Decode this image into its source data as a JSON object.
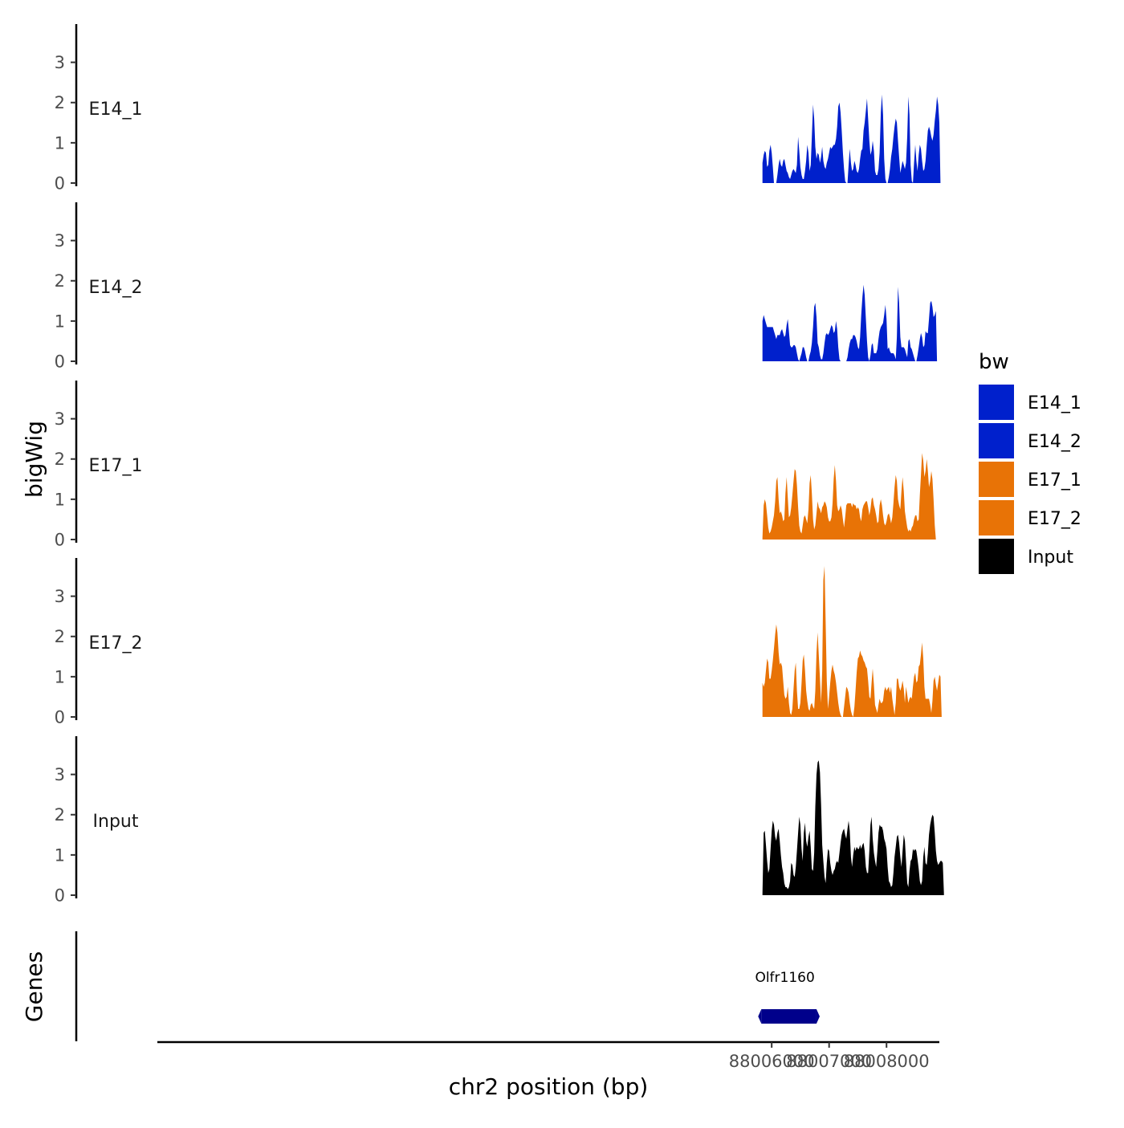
{
  "chart_data": {
    "type": "area",
    "xlabel": "chr2 position (bp)",
    "ylabel": "bigWig",
    "genes_label": "Genes",
    "xlim": [
      87995300,
      88008920
    ],
    "x_ticks": [
      {
        "value": 88006000,
        "label": "88006000"
      },
      {
        "value": 88007000,
        "label": "88007000"
      },
      {
        "value": 88008000,
        "label": "88008000"
      }
    ],
    "ylim": [
      0,
      3.95
    ],
    "y_ticks": [
      {
        "value": 0,
        "label": "0"
      },
      {
        "value": 1,
        "label": "1"
      },
      {
        "value": 2,
        "label": "2"
      },
      {
        "value": 3,
        "label": "3"
      }
    ],
    "x_start": 88005840,
    "x_step": 20,
    "legend": {
      "title": "bw",
      "entries": [
        {
          "name": "E14_1",
          "color": "#0020CC"
        },
        {
          "name": "E14_2",
          "color": "#0020CC"
        },
        {
          "name": "E17_1",
          "color": "#E87306"
        },
        {
          "name": "E17_2",
          "color": "#E87306"
        },
        {
          "name": "Input",
          "color": "#000000"
        }
      ]
    },
    "series": [
      {
        "name": "E14_1",
        "color": "#0020CC",
        "values": [
          0.5,
          0.7,
          0.8,
          0.75,
          0.4,
          0.45,
          0.8,
          0.95,
          0.75,
          0.4,
          0,
          0,
          0,
          0.2,
          0.45,
          0.6,
          0.45,
          0.4,
          0.55,
          0.6,
          0.45,
          0.3,
          0.25,
          0.15,
          0.1,
          0.2,
          0.3,
          0.35,
          0.3,
          0.25,
          0.45,
          1.15,
          0.8,
          0.4,
          0.2,
          0.1,
          0.1,
          0.3,
          0.55,
          0.95,
          0.75,
          0.3,
          0.45,
          1.15,
          1.95,
          1.6,
          0.9,
          0.6,
          0.75,
          0.7,
          0.5,
          0.65,
          0.9,
          0.55,
          0.4,
          0.35,
          0.5,
          0.6,
          0.75,
          0.9,
          0.85,
          0.9,
          0.95,
          0.95,
          1.1,
          1.4,
          1.9,
          2.0,
          1.75,
          1.3,
          0.75,
          0.35,
          0.05,
          0,
          0,
          0.45,
          0.85,
          0.5,
          0.3,
          0.35,
          0.55,
          0.45,
          0.3,
          0.25,
          0.35,
          0.6,
          0.8,
          0.85,
          1.3,
          1.5,
          1.8,
          2.1,
          1.6,
          1.05,
          0.7,
          0.8,
          1.05,
          0.8,
          0.3,
          0.2,
          0.2,
          0.35,
          0.75,
          1.75,
          2.2,
          1.7,
          0.6,
          0.1,
          0,
          0,
          0.15,
          0.35,
          0.65,
          0.85,
          1.15,
          1.4,
          1.6,
          1.5,
          1.05,
          0.65,
          0.25,
          0.4,
          0.55,
          0.45,
          0.35,
          0.5,
          1.15,
          2.15,
          1.7,
          0.45,
          0.05,
          0,
          0.5,
          0.95,
          0.55,
          0.3,
          0.7,
          0.95,
          0.85,
          0.55,
          0.3,
          0.35,
          0.55,
          0.95,
          1.3,
          1.4,
          1.3,
          1.15,
          1.05,
          1.2,
          1.55,
          1.8,
          2.15,
          1.95,
          1.5,
          0
        ]
      },
      {
        "name": "E14_2",
        "color": "#0020CC",
        "values": [
          1.0,
          1.15,
          1.05,
          0.95,
          0.85,
          0.85,
          0.85,
          0.85,
          0.85,
          0.85,
          0.75,
          0.65,
          0.55,
          0.65,
          0.65,
          0.65,
          0.75,
          0.8,
          0.7,
          0.6,
          0.65,
          0.9,
          1.05,
          0.75,
          0.4,
          0.35,
          0.35,
          0.4,
          0.4,
          0.35,
          0.2,
          0.05,
          0,
          0.1,
          0.2,
          0.35,
          0.35,
          0.25,
          0.1,
          0,
          0,
          0.15,
          0.25,
          0.45,
          0.85,
          1.35,
          1.45,
          1.1,
          0.45,
          0.35,
          0.15,
          0.05,
          0.05,
          0.2,
          0.45,
          0.65,
          0.7,
          0.65,
          0.7,
          0.8,
          0.9,
          0.85,
          0.7,
          0.75,
          1.0,
          0.8,
          0.35,
          0.05,
          0,
          0,
          0,
          0,
          0,
          0,
          0.1,
          0.3,
          0.45,
          0.55,
          0.55,
          0.65,
          0.65,
          0.6,
          0.5,
          0.35,
          0.3,
          0.6,
          1.15,
          1.6,
          1.9,
          1.65,
          1.05,
          0.5,
          0.1,
          0,
          0.15,
          0.4,
          0.45,
          0.2,
          0.2,
          0.2,
          0.3,
          0.55,
          0.75,
          0.85,
          0.9,
          0.95,
          1.15,
          1.4,
          1.05,
          0.3,
          0.35,
          0.25,
          0.2,
          0.2,
          0.2,
          0.15,
          0.05,
          0.6,
          1.85,
          1.45,
          0.6,
          0.35,
          0.35,
          0.35,
          0.3,
          0.2,
          0.1,
          0.5,
          0.55,
          0.35,
          0.3,
          0.2,
          0.1,
          0,
          0,
          0.15,
          0.35,
          0.55,
          0.7,
          0.6,
          0.35,
          0.4,
          0.75,
          0.7,
          0.7,
          1.05,
          1.45,
          1.5,
          1.35,
          1.1,
          1.15,
          1.25,
          0
        ]
      },
      {
        "name": "E17_1",
        "color": "#E87306",
        "values": [
          0.05,
          0.85,
          1.0,
          0.9,
          0.6,
          0.3,
          0.15,
          0.2,
          0.3,
          0.45,
          0.6,
          0.95,
          1.45,
          1.55,
          1.0,
          0.65,
          0.7,
          0.6,
          0.45,
          0.5,
          1.15,
          1.55,
          1.05,
          0.55,
          0.6,
          0.8,
          1.1,
          1.45,
          1.75,
          1.7,
          1.35,
          0.8,
          0.35,
          0.2,
          0.15,
          0.35,
          0.55,
          0.6,
          0.5,
          0.4,
          0.75,
          1.4,
          1.6,
          1.15,
          0.5,
          0.25,
          0.35,
          0.65,
          0.95,
          0.8,
          0.75,
          0.65,
          0.8,
          0.85,
          0.95,
          0.9,
          0.8,
          0.55,
          0.45,
          0.45,
          0.55,
          0.9,
          1.5,
          1.85,
          1.45,
          0.85,
          0.7,
          0.75,
          0.85,
          0.75,
          0.5,
          0.3,
          0.55,
          0.85,
          0.9,
          0.9,
          0.9,
          0.9,
          0.8,
          0.9,
          0.85,
          0.85,
          0.75,
          0.8,
          0.75,
          0.55,
          0.45,
          0.75,
          0.85,
          0.9,
          0.95,
          0.95,
          0.8,
          0.6,
          0.75,
          1.0,
          1.05,
          0.85,
          0.75,
          0.6,
          0.4,
          0.45,
          0.85,
          1.0,
          0.85,
          0.6,
          0.4,
          0.35,
          0.45,
          0.6,
          0.65,
          0.55,
          0.4,
          0.55,
          0.9,
          1.3,
          1.6,
          1.45,
          1.0,
          0.85,
          0.75,
          1.2,
          1.55,
          1.2,
          0.7,
          0.5,
          0.3,
          0.2,
          0.25,
          0.2,
          0.3,
          0.35,
          0.5,
          0.6,
          0.6,
          0.45,
          0.5,
          1.1,
          1.6,
          2.15,
          1.95,
          1.55,
          1.7,
          2.0,
          1.7,
          1.3,
          1.45,
          1.7,
          1.5,
          1.0,
          0.35,
          0
        ]
      },
      {
        "name": "E17_2",
        "color": "#E87306",
        "values": [
          0.85,
          0.75,
          0.85,
          1.15,
          1.45,
          1.35,
          0.95,
          0.95,
          1.15,
          1.4,
          1.7,
          2.05,
          2.3,
          2.1,
          1.6,
          1.3,
          1.35,
          1.25,
          0.9,
          0.55,
          0.45,
          0.5,
          0.75,
          0.35,
          0.1,
          0.05,
          0.2,
          0.7,
          1.15,
          1.35,
          0.65,
          0.2,
          0.2,
          0.35,
          0.85,
          1.4,
          1.55,
          1.15,
          0.65,
          0.4,
          0.2,
          0.15,
          0.3,
          0.35,
          0.25,
          0.2,
          0.65,
          1.6,
          2.1,
          1.55,
          0.95,
          0.35,
          1.15,
          3.4,
          3.75,
          2.35,
          0.9,
          0.2,
          0.5,
          0.85,
          1.15,
          1.3,
          1.15,
          1.05,
          0.85,
          0.6,
          0.35,
          0.15,
          0.05,
          0,
          0,
          0.25,
          0.5,
          0.75,
          0.7,
          0.6,
          0.35,
          0.15,
          0.05,
          0,
          0.25,
          0.65,
          1.1,
          1.45,
          1.5,
          1.65,
          1.55,
          1.5,
          1.4,
          1.35,
          1.25,
          1.2,
          0.9,
          0.5,
          0.45,
          0.85,
          1.2,
          0.8,
          0.3,
          0.2,
          0.1,
          0.3,
          0.45,
          0.35,
          0.35,
          0.4,
          0.65,
          0.75,
          0.65,
          0.7,
          0.75,
          0.6,
          0.75,
          0.45,
          0.25,
          0.05,
          0.35,
          0.95,
          0.95,
          0.75,
          0.65,
          0.75,
          0.9,
          0.7,
          0.35,
          0.75,
          0.55,
          0.35,
          0.45,
          0.5,
          0.45,
          0.75,
          1.0,
          1.1,
          0.85,
          0.9,
          1.25,
          1.3,
          1.55,
          1.85,
          1.45,
          0.75,
          0.45,
          0.45,
          0.45,
          0.45,
          0.3,
          0.1,
          0.4,
          0.9,
          1.0,
          0.8,
          0.65,
          0.85,
          1.05,
          1.0,
          0
        ]
      },
      {
        "name": "Input",
        "color": "#000000",
        "values": [
          0.05,
          1.55,
          1.6,
          1.25,
          0.85,
          0.55,
          0.65,
          1.15,
          1.6,
          1.85,
          1.75,
          1.45,
          1.35,
          1.55,
          1.65,
          1.35,
          1.0,
          0.7,
          0.55,
          0.3,
          0.2,
          0.2,
          0.15,
          0.2,
          0.35,
          0.8,
          0.75,
          0.5,
          0.45,
          0.7,
          1.1,
          1.55,
          1.95,
          1.75,
          1.15,
          0.85,
          1.55,
          1.8,
          1.35,
          1.2,
          1.45,
          1.6,
          1.2,
          0.65,
          0.6,
          1.05,
          2.2,
          3.0,
          3.3,
          3.35,
          3.05,
          2.25,
          1.25,
          0.85,
          0.45,
          0.3,
          0.8,
          1.15,
          1.1,
          0.8,
          0.6,
          0.5,
          0.6,
          0.65,
          0.8,
          0.85,
          0.8,
          1.05,
          1.3,
          1.5,
          1.6,
          1.65,
          1.5,
          1.4,
          1.65,
          1.85,
          1.6,
          0.95,
          0.7,
          1.0,
          1.2,
          1.1,
          1.2,
          1.15,
          1.15,
          1.25,
          1.15,
          1.25,
          1.3,
          1.1,
          0.7,
          0.55,
          0.55,
          1.1,
          1.75,
          1.95,
          1.4,
          1.05,
          0.85,
          0.7,
          1.1,
          1.55,
          1.75,
          1.7,
          1.7,
          1.6,
          1.4,
          1.3,
          1.15,
          0.7,
          0.35,
          0.3,
          0.2,
          0.25,
          0.55,
          0.95,
          1.2,
          1.45,
          1.5,
          1.3,
          0.95,
          0.7,
          1.1,
          1.5,
          1.35,
          0.85,
          0.3,
          0.2,
          0.6,
          0.85,
          0.9,
          1.15,
          1.1,
          1.15,
          1.1,
          0.9,
          0.65,
          0.35,
          0.25,
          0.35,
          0.95,
          1.2,
          0.8,
          0.75,
          1.05,
          1.5,
          1.75,
          1.9,
          2.0,
          1.95,
          1.55,
          1.1,
          0.85,
          0.75,
          0.8,
          0.85,
          0.85,
          0.8,
          0.05
        ]
      }
    ],
    "genes": [
      {
        "name": "Olfr1160",
        "start": 88005820,
        "end": 88006780,
        "color": "#00008B"
      }
    ]
  }
}
